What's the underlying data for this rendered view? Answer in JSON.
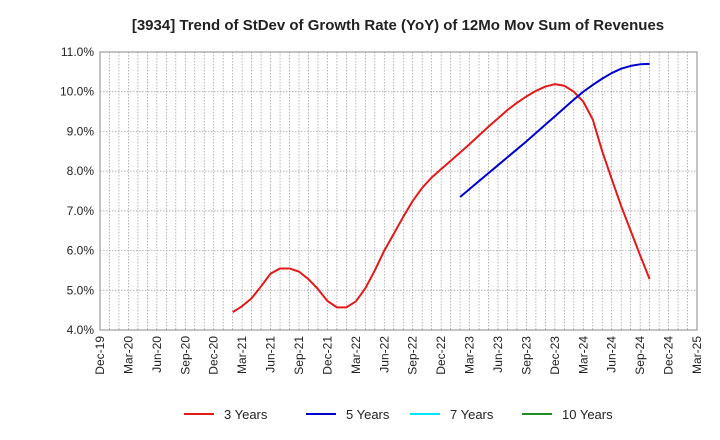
{
  "chart_data": {
    "type": "line",
    "title": "[3934]  Trend of StDev of Growth Rate (YoY) of 12Mo Mov Sum of Revenues",
    "xlabel": "",
    "ylabel": "",
    "ylim": [
      4.0,
      11.0
    ],
    "y_ticks": [
      "4.0%",
      "5.0%",
      "6.0%",
      "7.0%",
      "8.0%",
      "9.0%",
      "10.0%",
      "11.0%"
    ],
    "x_ticks": [
      "Dec-19",
      "Mar-20",
      "Jun-20",
      "Sep-20",
      "Dec-20",
      "Mar-21",
      "Jun-21",
      "Sep-21",
      "Dec-21",
      "Mar-22",
      "Jun-22",
      "Sep-22",
      "Dec-22",
      "Mar-23",
      "Jun-23",
      "Sep-23",
      "Dec-23",
      "Mar-24",
      "Jun-24",
      "Sep-24",
      "Dec-24",
      "Mar-25"
    ],
    "grid": true,
    "legend_position": "bottom",
    "series": [
      {
        "name": "3 Years",
        "color": "#e31a1c",
        "start": "Feb-21",
        "values": [
          4.45,
          4.6,
          4.8,
          5.1,
          5.42,
          5.55,
          5.55,
          5.47,
          5.28,
          5.03,
          4.73,
          4.57,
          4.57,
          4.72,
          5.05,
          5.5,
          6.0,
          6.42,
          6.85,
          7.25,
          7.58,
          7.84,
          8.05,
          8.26,
          8.47,
          8.68,
          8.9,
          9.12,
          9.33,
          9.54,
          9.72,
          9.88,
          10.02,
          10.13,
          10.19,
          10.15,
          10.0,
          9.75,
          9.3,
          8.5,
          7.8,
          7.12,
          6.5,
          5.88,
          5.28
        ]
      },
      {
        "name": "5 Years",
        "color": "#0000cc",
        "start": "Feb-23",
        "values": [
          7.35,
          7.55,
          7.75,
          7.95,
          8.15,
          8.35,
          8.55,
          8.75,
          8.96,
          9.17,
          9.38,
          9.59,
          9.8,
          10.0,
          10.17,
          10.33,
          10.47,
          10.58,
          10.65,
          10.69,
          10.7
        ]
      },
      {
        "name": "7 Years",
        "color": "#00e5ff",
        "start": "",
        "values": []
      },
      {
        "name": "10 Years",
        "color": "#228b22",
        "start": "",
        "values": []
      }
    ]
  }
}
